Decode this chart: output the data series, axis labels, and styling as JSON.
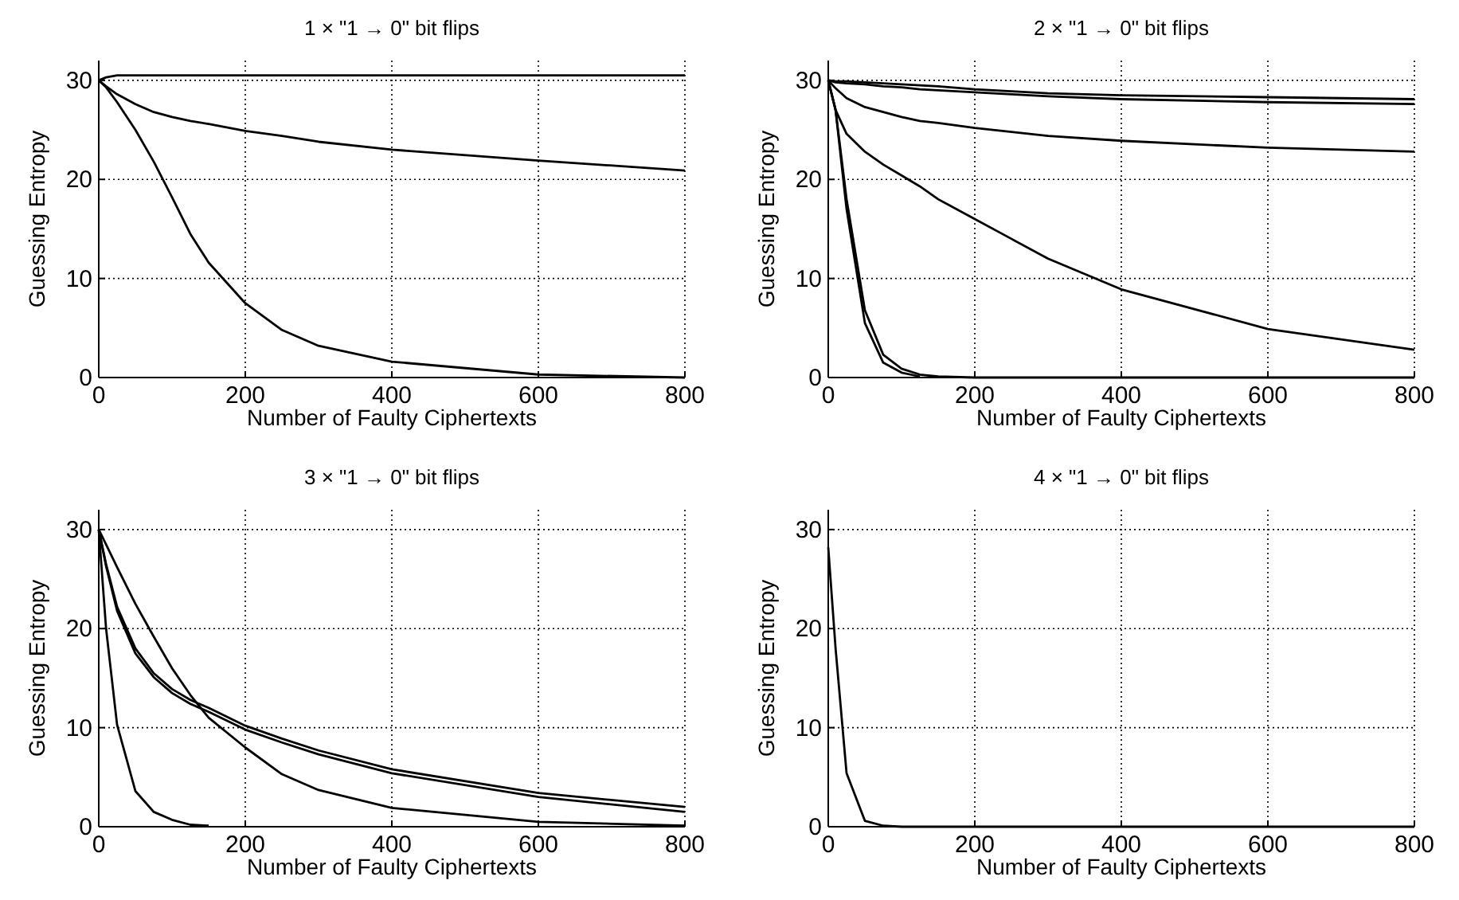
{
  "chart_data": [
    {
      "type": "line",
      "title": "1 × \"1 → 0\" bit flips",
      "xlabel": "Number of Faulty Ciphertexts",
      "ylabel": "Guessing Entropy",
      "x": [
        0,
        10,
        25,
        50,
        75,
        100,
        125,
        150,
        200,
        250,
        300,
        400,
        600,
        800
      ],
      "xlim": [
        0,
        800
      ],
      "ylim": [
        0,
        32
      ],
      "xticks": [
        0,
        200,
        400,
        600,
        800
      ],
      "yticks": [
        0,
        10,
        20,
        30
      ],
      "grid": true,
      "line_style": "solid",
      "marker": "none",
      "series": [
        {
          "color": "#000000",
          "values": [
            30,
            30.3,
            30.5,
            30.5,
            30.5,
            30.5,
            30.5,
            30.5,
            30.5,
            30.5,
            30.5,
            30.5,
            30.5,
            30.5
          ]
        },
        {
          "color": "#000000",
          "values": [
            30,
            29.4,
            28.6,
            27.6,
            26.8,
            26.3,
            25.9,
            25.6,
            24.9,
            24.4,
            23.8,
            23,
            21.9,
            20.9
          ]
        },
        {
          "color": "#000000",
          "values": [
            30,
            29.3,
            27.8,
            25,
            21.8,
            18.2,
            14.5,
            11.6,
            7.5,
            4.8,
            3.2,
            1.6,
            0.3,
            0
          ]
        }
      ]
    },
    {
      "type": "line",
      "title": "2 × \"1 → 0\" bit flips",
      "xlabel": "Number of Faulty Ciphertexts",
      "ylabel": "Guessing Entropy",
      "x": [
        0,
        10,
        25,
        50,
        75,
        100,
        125,
        150,
        200,
        250,
        300,
        400,
        600,
        800
      ],
      "xlim": [
        0,
        800
      ],
      "ylim": [
        0,
        32
      ],
      "xticks": [
        0,
        200,
        400,
        600,
        800
      ],
      "yticks": [
        0,
        10,
        20,
        30
      ],
      "grid": true,
      "line_style": "solid",
      "marker": "none",
      "series": [
        {
          "color": "#000000",
          "values": [
            30,
            29.9,
            29.9,
            29.8,
            29.7,
            29.6,
            29.5,
            29.4,
            29.1,
            28.9,
            28.7,
            28.5,
            28.3,
            28.1
          ]
        },
        {
          "color": "#000000",
          "values": [
            30,
            29.8,
            29.7,
            29.6,
            29.4,
            29.3,
            29.1,
            29,
            28.8,
            28.6,
            28.4,
            28.1,
            27.8,
            27.6
          ]
        },
        {
          "color": "#000000",
          "values": [
            30,
            29.2,
            28.2,
            27.3,
            26.8,
            26.3,
            25.9,
            25.7,
            25.2,
            24.8,
            24.4,
            23.9,
            23.2,
            22.8
          ]
        },
        {
          "color": "#000000",
          "values": [
            30,
            27,
            24.6,
            22.8,
            21.5,
            20.4,
            19.3,
            18,
            16,
            14,
            12,
            8.9,
            4.9,
            2.8
          ]
        },
        {
          "color": "#000000",
          "values": [
            30,
            27,
            18,
            6.8,
            2.3,
            0.9,
            0.3,
            0.1,
            0,
            0,
            0,
            0,
            0,
            0
          ]
        },
        {
          "color": "#000000",
          "values": [
            30,
            27,
            17,
            5.5,
            1.5,
            0.5,
            0.1,
            null,
            null,
            null,
            null,
            null,
            null,
            null
          ]
        }
      ]
    },
    {
      "type": "line",
      "title": "3 × \"1 → 0\" bit flips",
      "xlabel": "Number of Faulty Ciphertexts",
      "ylabel": "Guessing Entropy",
      "x": [
        0,
        10,
        25,
        50,
        75,
        100,
        125,
        150,
        200,
        250,
        300,
        400,
        600,
        800
      ],
      "xlim": [
        0,
        800
      ],
      "ylim": [
        0,
        32
      ],
      "xticks": [
        0,
        200,
        400,
        600,
        800
      ],
      "yticks": [
        0,
        10,
        20,
        30
      ],
      "grid": true,
      "line_style": "solid",
      "marker": "none",
      "series": [
        {
          "color": "#000000",
          "values": [
            30,
            28.5,
            26.2,
            22.5,
            19.2,
            16,
            13.3,
            11,
            8,
            5.3,
            3.7,
            1.9,
            0.5,
            0.1
          ]
        },
        {
          "color": "#000000",
          "values": [
            30,
            26.5,
            22.2,
            18,
            15.5,
            13.9,
            12.8,
            12,
            10.2,
            8.9,
            7.7,
            5.8,
            3.4,
            2
          ]
        },
        {
          "color": "#000000",
          "values": [
            30,
            26.3,
            21.8,
            17.5,
            15.1,
            13.5,
            12.4,
            11.6,
            9.8,
            8.5,
            7.3,
            5.4,
            3,
            1.5
          ]
        },
        {
          "color": "#000000",
          "values": [
            30,
            20,
            10.3,
            3.6,
            1.5,
            0.7,
            0.2,
            0.1,
            null,
            null,
            null,
            null,
            null,
            null
          ]
        }
      ]
    },
    {
      "type": "line",
      "title": "4 × \"1 → 0\" bit flips",
      "xlabel": "Number of Faulty Ciphertexts",
      "ylabel": "Guessing Entropy",
      "x": [
        0,
        10,
        25,
        50,
        75,
        100,
        125,
        150,
        200,
        250,
        300,
        400,
        600,
        800
      ],
      "xlim": [
        0,
        800
      ],
      "ylim": [
        0,
        32
      ],
      "xticks": [
        0,
        200,
        400,
        600,
        800
      ],
      "yticks": [
        0,
        10,
        20,
        30
      ],
      "grid": true,
      "line_style": "solid",
      "marker": "none",
      "series": [
        {
          "color": "#000000",
          "values": [
            28.2,
            18,
            5.4,
            0.6,
            0.1,
            0,
            0,
            0,
            0,
            0,
            0,
            0,
            0,
            0
          ]
        }
      ]
    }
  ]
}
